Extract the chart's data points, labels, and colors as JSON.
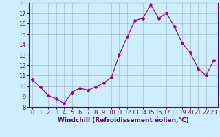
{
  "x": [
    0,
    1,
    2,
    3,
    4,
    5,
    6,
    7,
    8,
    9,
    10,
    11,
    12,
    13,
    14,
    15,
    16,
    17,
    18,
    19,
    20,
    21,
    22,
    23
  ],
  "y": [
    10.6,
    9.9,
    9.1,
    8.8,
    8.3,
    9.4,
    9.8,
    9.6,
    9.9,
    10.3,
    10.8,
    13.0,
    14.7,
    16.3,
    16.5,
    17.8,
    16.5,
    17.0,
    15.7,
    14.1,
    13.2,
    11.7,
    11.0,
    12.5
  ],
  "line_color": "#990099",
  "marker": "D",
  "marker_size": 2,
  "bg_color": "#cceeff",
  "grid_color": "#aabbcc",
  "xlabel": "Windchill (Refroidissement éolien,°C)",
  "xlabel_color": "#660066",
  "tick_color": "#660066",
  "ylim": [
    8,
    18
  ],
  "xlim": [
    -0.5,
    23.5
  ],
  "yticks": [
    8,
    9,
    10,
    11,
    12,
    13,
    14,
    15,
    16,
    17,
    18
  ],
  "xticks": [
    0,
    1,
    2,
    3,
    4,
    5,
    6,
    7,
    8,
    9,
    10,
    11,
    12,
    13,
    14,
    15,
    16,
    17,
    18,
    19,
    20,
    21,
    22,
    23
  ],
  "tick_fontsize": 6,
  "xlabel_fontsize": 6.5
}
